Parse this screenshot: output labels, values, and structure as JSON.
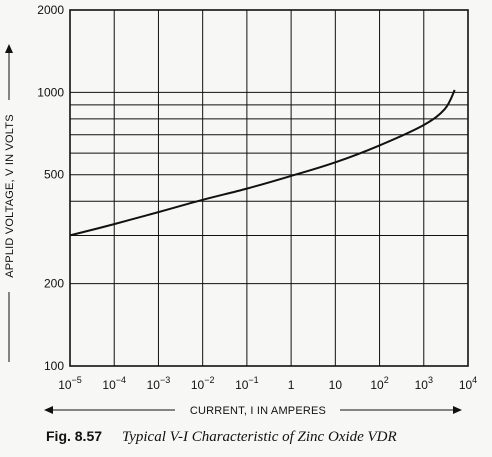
{
  "chart_data": {
    "type": "line",
    "xscale": "log",
    "yscale": "log",
    "xlim": [
      1e-05,
      10000
    ],
    "ylim": [
      100,
      2000
    ],
    "x_ticks": [
      {
        "value": 1e-05,
        "base": "10",
        "exp": "−5"
      },
      {
        "value": 0.0001,
        "base": "10",
        "exp": "−4"
      },
      {
        "value": 0.001,
        "base": "10",
        "exp": "−3"
      },
      {
        "value": 0.01,
        "base": "10",
        "exp": "−2"
      },
      {
        "value": 0.1,
        "base": "10",
        "exp": "−1"
      },
      {
        "value": 1,
        "base": "1",
        "exp": ""
      },
      {
        "value": 10,
        "base": "10",
        "exp": ""
      },
      {
        "value": 100,
        "base": "10",
        "exp": "2"
      },
      {
        "value": 1000,
        "base": "10",
        "exp": "3"
      },
      {
        "value": 10000,
        "base": "10",
        "exp": "4"
      }
    ],
    "y_tick_labels": [
      {
        "value": 100,
        "label": "100"
      },
      {
        "value": 200,
        "label": "200"
      },
      {
        "value": 500,
        "label": "500"
      },
      {
        "value": 1000,
        "label": "1000"
      },
      {
        "value": 2000,
        "label": "2000"
      }
    ],
    "y_gridlines": [
      100,
      200,
      300,
      400,
      500,
      600,
      700,
      800,
      900,
      1000,
      2000
    ],
    "grid": true,
    "xlabel": "CURRENT, I IN AMPERES",
    "ylabel": "APPLID VOLTAGE, V IN VOLTS",
    "series": [
      {
        "x": [
          1e-05,
          0.0001,
          0.001,
          0.01,
          0.1,
          1,
          10,
          100,
          1000,
          3000,
          5000
        ],
        "y": [
          300,
          330,
          365,
          405,
          445,
          495,
          555,
          640,
          760,
          870,
          1020
        ]
      }
    ]
  },
  "caption": {
    "label": "Fig. 8.57",
    "text": "Typical V-I Characteristic of Zinc Oxide VDR"
  }
}
